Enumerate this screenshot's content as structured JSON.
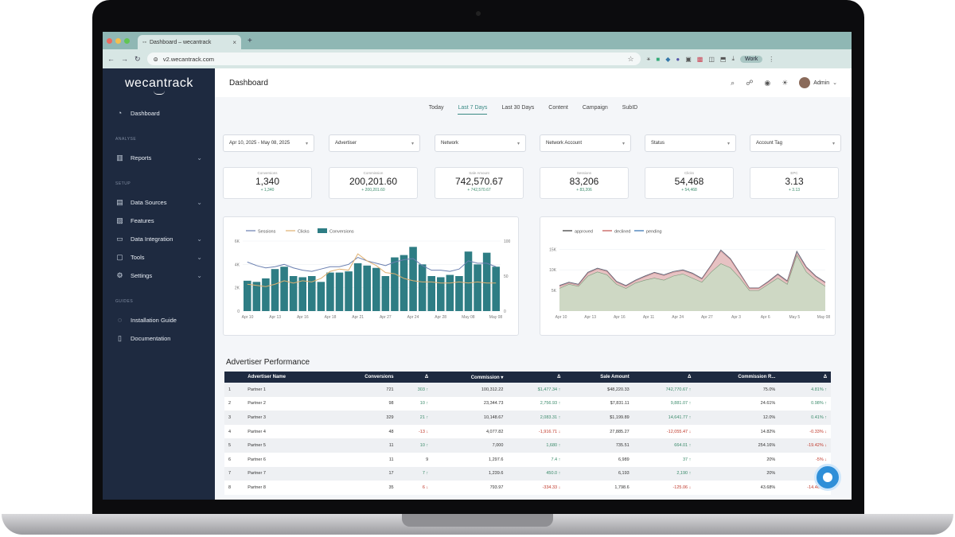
{
  "browser": {
    "tab_title": "Dashboard – wecantrack",
    "url": "v2.wecantrack.com",
    "profile_label": "Work"
  },
  "sidebar": {
    "logo": "wecantrack",
    "items": [
      {
        "label": "Dashboard",
        "icon": "dashboard-icon"
      },
      {
        "section": "ANALYSE"
      },
      {
        "label": "Reports",
        "icon": "bar-chart-icon"
      },
      {
        "section": "SETUP"
      },
      {
        "label": "Data Sources",
        "icon": "database-icon"
      },
      {
        "label": "Features",
        "icon": "features-icon"
      },
      {
        "label": "Data Integration",
        "icon": "integration-icon"
      },
      {
        "label": "Tools",
        "icon": "tools-icon"
      },
      {
        "label": "Settings",
        "icon": "gear-icon"
      },
      {
        "section": "GUIDES"
      },
      {
        "label": "Installation Guide",
        "icon": "guide-icon"
      },
      {
        "label": "Documentation",
        "icon": "document-icon"
      }
    ]
  },
  "header": {
    "title": "Dashboard",
    "user": "Admin"
  },
  "tabs": [
    "Today",
    "Last 7 Days",
    "Last 30 Days",
    "Content",
    "Campaign",
    "SubID"
  ],
  "active_tab": "Last 7 Days",
  "filters": [
    "Apr 10, 2025 - May 08, 2025",
    "Advertiser",
    "Network",
    "Network Account",
    "Status",
    "Account Tag"
  ],
  "kpis": [
    {
      "label": "Conversions",
      "value": "1,340",
      "change": "+ 1,340"
    },
    {
      "label": "Commission",
      "value": "200,201.60",
      "change": "+ 200,201.60"
    },
    {
      "label": "Sale Amount",
      "value": "742,570.67",
      "change": "+ 742,570.67"
    },
    {
      "label": "Sessions",
      "value": "83,206",
      "change": "+ 83,206"
    },
    {
      "label": "Clicks",
      "value": "54,468",
      "change": "+ 54,468"
    },
    {
      "label": "EPC",
      "value": "3.13",
      "change": "+ 3.13"
    }
  ],
  "chart_data": [
    {
      "type": "bar",
      "legend": [
        "Sessions",
        "Clicks",
        "Conversions"
      ],
      "y_ticks": [
        "6K",
        "4K",
        "2K",
        "0"
      ],
      "y2_ticks": [
        "100",
        "50",
        "0"
      ],
      "x_ticks": [
        "Apr 10",
        "Apr 13",
        "Apr 16",
        "Apr 18",
        "Apr 21",
        "Apr 27",
        "Apr 24",
        "Apr 28",
        "May 08",
        "May 08"
      ],
      "series": [
        {
          "name": "Conversions",
          "values": [
            2.6,
            2.5,
            2.8,
            3.6,
            3.8,
            3.0,
            2.9,
            3.0,
            2.5,
            3.3,
            3.3,
            3.4,
            4.1,
            3.9,
            3.7,
            3.0,
            4.6,
            4.8,
            5.5,
            4.0,
            3.0,
            2.9,
            3.1,
            3.0,
            5.1,
            4.0,
            5.0,
            3.8
          ]
        },
        {
          "name": "Sessions",
          "values": [
            4.2,
            3.9,
            3.7,
            3.8,
            4.0,
            3.7,
            3.5,
            3.4,
            3.6,
            3.8,
            3.8,
            4.0,
            4.6,
            4.3,
            4.1,
            3.9,
            4.2,
            4.4,
            4.5,
            3.9,
            3.5,
            3.5,
            3.4,
            3.6,
            4.3,
            4.1,
            4.1,
            3.8
          ]
        },
        {
          "name": "Clicks",
          "values": [
            2.3,
            2.2,
            2.1,
            2.3,
            2.6,
            2.4,
            2.6,
            2.5,
            2.8,
            3.4,
            3.6,
            3.5,
            4.9,
            4.3,
            3.9,
            3.3,
            3.2,
            2.8,
            2.6,
            2.5,
            2.5,
            2.4,
            2.4,
            2.5,
            2.4,
            2.5,
            2.4,
            2.4
          ]
        }
      ],
      "ylim": [
        0,
        6
      ]
    },
    {
      "type": "area",
      "legend": [
        "approved",
        "declined",
        "pending"
      ],
      "y_ticks": [
        "15K",
        "10K",
        "5K"
      ],
      "x_ticks": [
        "Apr 10",
        "Apr 13",
        "Apr 16",
        "Apr 11",
        "Apr 24",
        "Apr 27",
        "Apr 3",
        "Apr 6",
        "May 5",
        "May 08"
      ],
      "series": [
        {
          "name": "approved",
          "values": [
            5.5,
            6.5,
            6.0,
            8.5,
            9.5,
            8.8,
            6.5,
            5.5,
            6.8,
            7.5,
            8.0,
            7.5,
            8.5,
            9.0,
            8.0,
            7.0,
            9.5,
            11.5,
            10.5,
            8.0,
            5.0,
            5.0,
            6.5,
            8.0,
            6.5,
            13.5,
            9.5,
            7.5,
            6.0
          ]
        },
        {
          "name": "declined",
          "values": [
            6.0,
            6.8,
            6.3,
            9.2,
            10.2,
            9.6,
            7.0,
            6.0,
            7.3,
            8.3,
            9.2,
            8.6,
            9.4,
            9.8,
            9.0,
            7.7,
            11.0,
            14.5,
            12.5,
            9.0,
            5.5,
            5.5,
            7.0,
            8.8,
            7.1,
            14.0,
            10.5,
            8.3,
            6.8
          ]
        },
        {
          "name": "pending",
          "values": [
            6.2,
            7.0,
            6.5,
            9.4,
            10.4,
            9.8,
            7.2,
            6.2,
            7.5,
            8.5,
            9.4,
            8.8,
            9.6,
            10.0,
            9.2,
            7.9,
            11.2,
            14.8,
            12.7,
            9.2,
            5.6,
            5.6,
            7.2,
            9.0,
            7.3,
            14.5,
            10.7,
            8.5,
            7.0
          ]
        }
      ],
      "ylim": [
        0,
        17
      ]
    }
  ],
  "table": {
    "title": "Advertiser Performance",
    "headers": [
      "",
      "Advertiser Name",
      "Conversions",
      "Δ",
      "Commission ▾",
      "Δ",
      "Sale Amount",
      "Δ",
      "Commission R...",
      "Δ"
    ],
    "rows": [
      [
        "1",
        "Partner 1",
        "721",
        "303 ↑",
        "100,312.22",
        "$1,477.34 ↑",
        "$48,220.33",
        "742,770.67 ↑",
        "75.0%",
        "4.81% ↑"
      ],
      [
        "2",
        "Partner 2",
        "98",
        "10 ↑",
        "23,344.73",
        "2,756.93 ↑",
        "$7,831.11",
        "9,881.07 ↑",
        "24.61%",
        "0.98% ↑"
      ],
      [
        "3",
        "Partner 3",
        "329",
        "21 ↑",
        "10,148.67",
        "2,083.31 ↑",
        "$1,199.89",
        "14,641.77 ↑",
        "12.0%",
        "0.41% ↑"
      ],
      [
        "4",
        "Partner 4",
        "48",
        "-13 ↓",
        "4,077.82",
        "-1,916.71 ↓",
        "27,885.27",
        "-12,055.47 ↓",
        "14.82%",
        "-0.33% ↓"
      ],
      [
        "5",
        "Partner 5",
        "11",
        "10 ↑",
        "7,000",
        "1,680 ↑",
        "735.51",
        "664.01 ↑",
        "254.16%",
        "-19.42% ↓"
      ],
      [
        "6",
        "Partner 6",
        "11",
        "9",
        "1,297.6",
        "7.4 ↑",
        "6,989",
        "37 ↑",
        "20%",
        "-5% ↓"
      ],
      [
        "7",
        "Partner 7",
        "17",
        "7 ↑",
        "1,239.6",
        "450.0 ↑",
        "6,193",
        "2,190 ↑",
        "20%",
        "-9% ↓"
      ],
      [
        "8",
        "Partner 8",
        "35",
        "6 ↓",
        "793.97",
        "-334.33 ↓",
        "1,798.6",
        "-125.06 ↓",
        "43.68%",
        "-14.46% ↓"
      ]
    ]
  },
  "colors": {
    "sidebar": "#1e2a40",
    "accent": "#2e7d84",
    "sessions_line": "#6a7fb0",
    "clicks_line": "#e0b070",
    "approved": "#c8ddc4",
    "declined": "#e8b8b8",
    "pending": "#7fa7c8"
  }
}
